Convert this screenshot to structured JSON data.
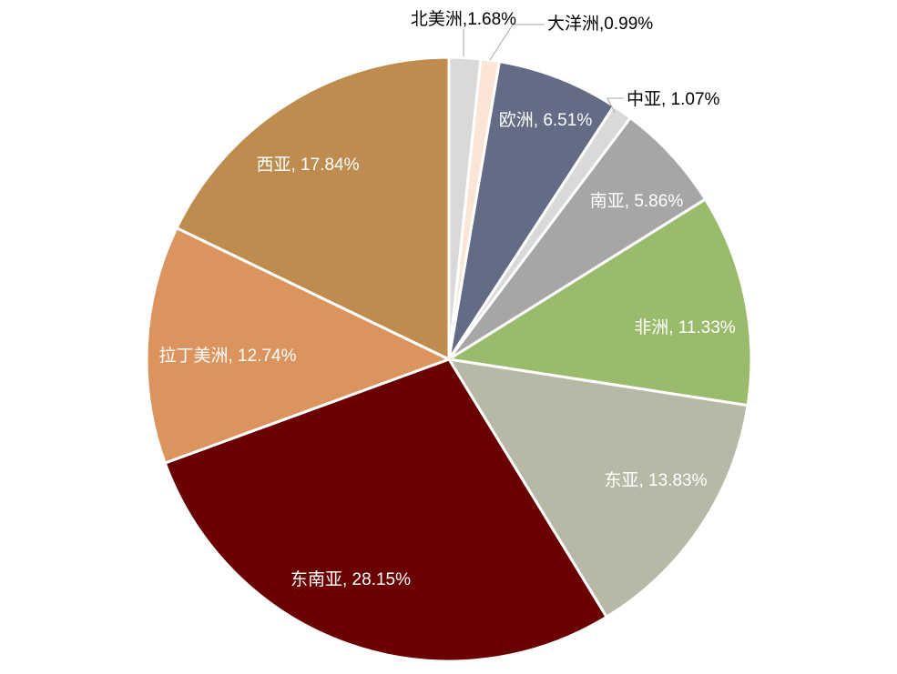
{
  "chart_data": {
    "type": "pie",
    "title": "",
    "start_angle_deg": 0,
    "direction": "clockwise",
    "slices": [
      {
        "name": "北美洲",
        "value": 1.68,
        "label": "北美洲,1.68%",
        "color": "#d9d9d9",
        "label_color": "#000000",
        "label_position": "outside"
      },
      {
        "name": "大洋洲",
        "value": 0.99,
        "label": "大洋洲,0.99%",
        "color": "#fbe5d6",
        "label_color": "#000000",
        "label_position": "outside"
      },
      {
        "name": "欧洲",
        "value": 6.51,
        "label": "欧洲, 6.51%",
        "color": "#636b85",
        "label_color": "#ffffff",
        "label_position": "inside"
      },
      {
        "name": "中亚",
        "value": 1.07,
        "label": "中亚, 1.07%",
        "color": "#d9d9d9",
        "label_color": "#000000",
        "label_position": "outside"
      },
      {
        "name": "南亚",
        "value": 5.86,
        "label": "南亚, 5.86%",
        "color": "#a6a6a6",
        "label_color": "#ffffff",
        "label_position": "inside"
      },
      {
        "name": "非洲",
        "value": 11.33,
        "label": "非洲, 11.33%",
        "color": "#9bbb6c",
        "label_color": "#ffffff",
        "label_position": "inside"
      },
      {
        "name": "东亚",
        "value": 13.83,
        "label": "东亚, 13.83%",
        "color": "#b8b8a6",
        "label_color": "#ffffff",
        "label_position": "inside"
      },
      {
        "name": "东南亚",
        "value": 28.15,
        "label": "东南亚, 28.15%",
        "color": "#6a0000",
        "label_color": "#ffffff",
        "label_position": "inside"
      },
      {
        "name": "拉丁美洲",
        "value": 12.74,
        "label": "拉丁美洲, 12.74%",
        "color": "#dc945f",
        "label_color": "#ffffff",
        "label_position": "inside"
      },
      {
        "name": "西亚",
        "value": 17.84,
        "label": "西亚, 17.84%",
        "color": "#bd8c4e",
        "label_color": "#ffffff",
        "label_position": "inside"
      }
    ]
  }
}
